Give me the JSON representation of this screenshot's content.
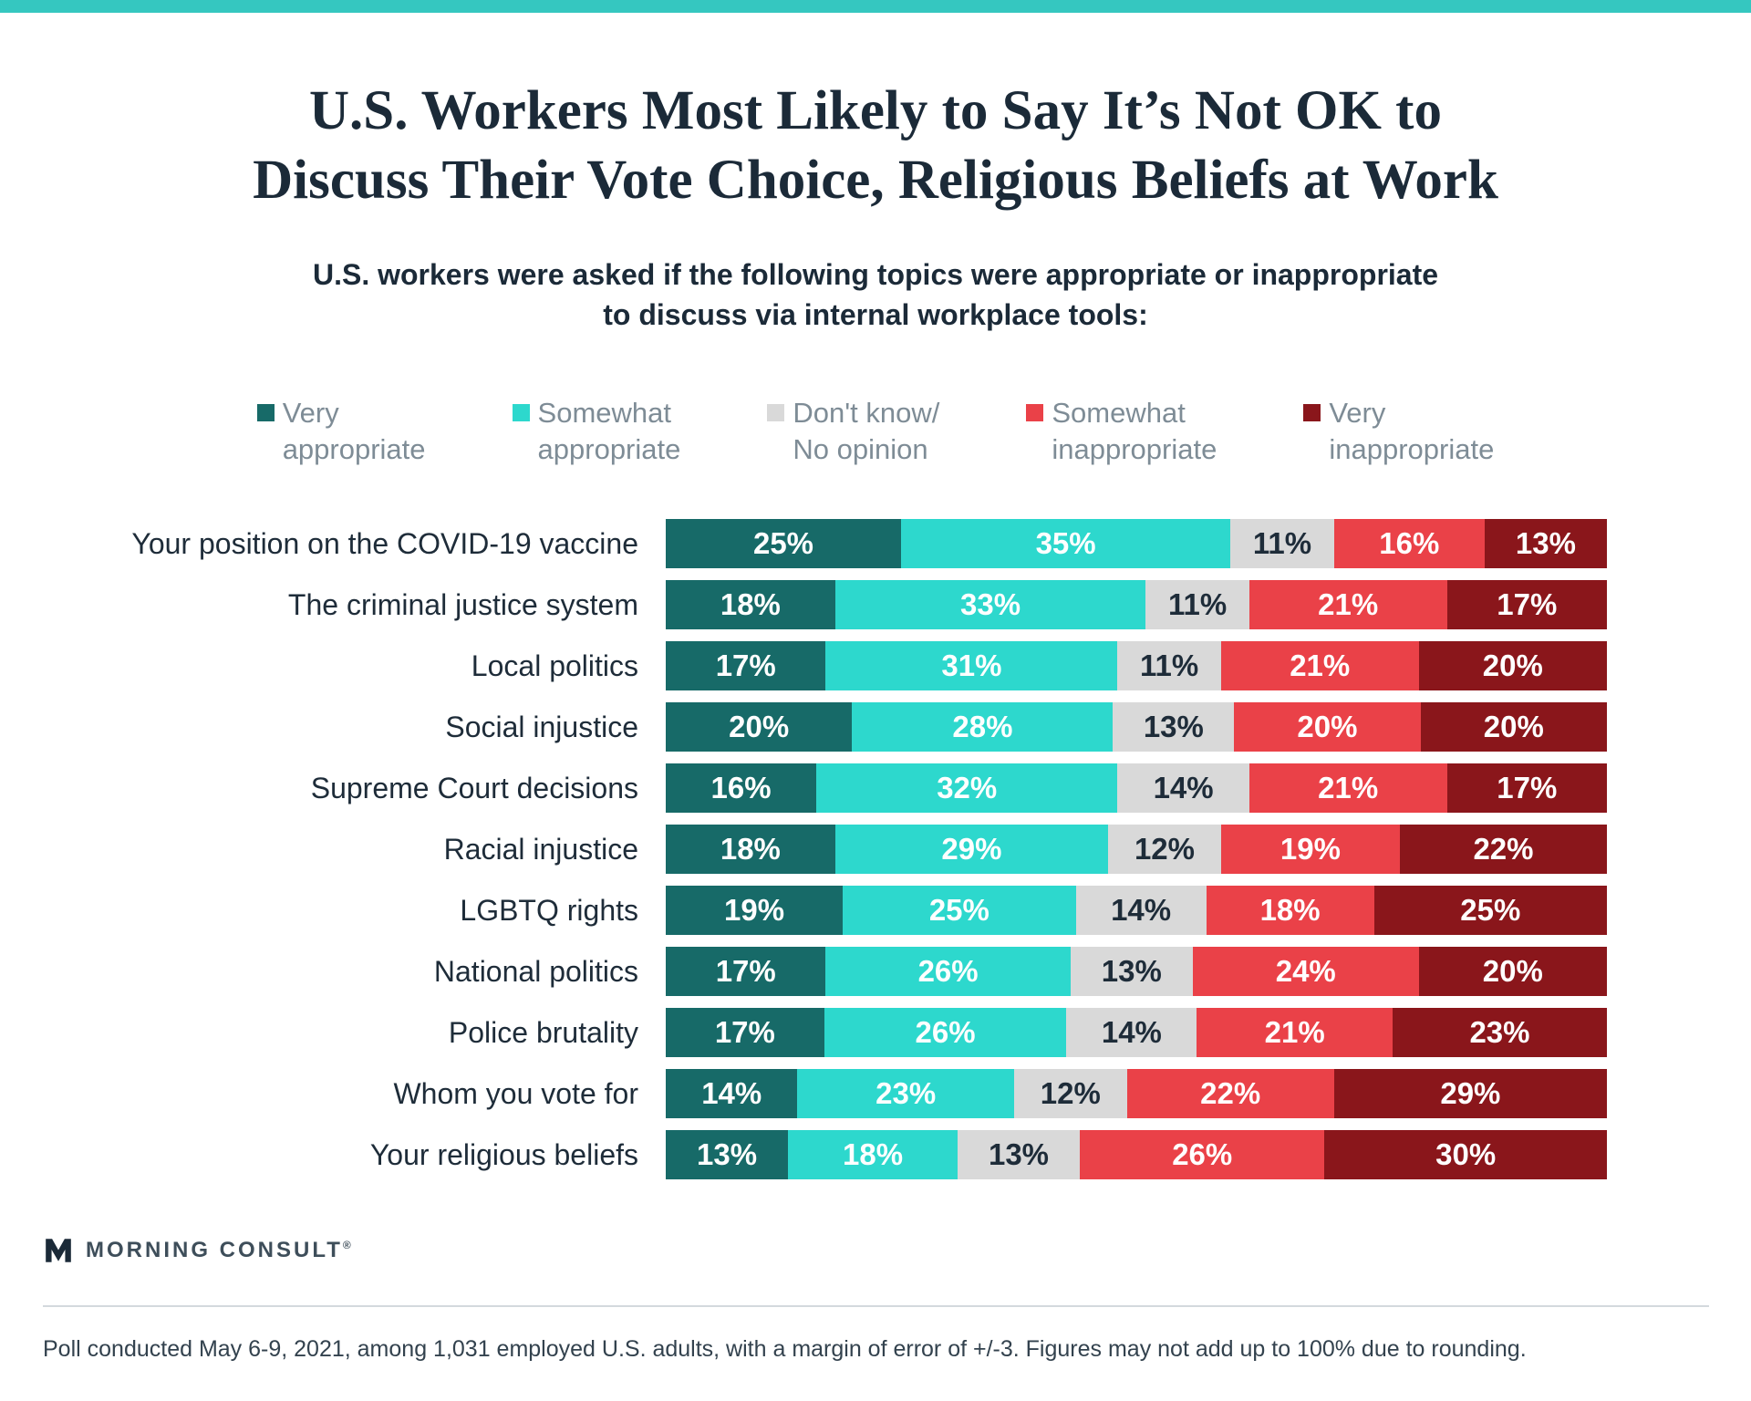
{
  "accent_color": "#35c7c0",
  "header": {
    "title_line1": "U.S. Workers Most Likely to Say It’s Not OK to",
    "title_line2": "Discuss Their Vote Choice, Religious Beliefs at Work",
    "subtitle_line1": "U.S. workers were asked if the following topics were appropriate or inappropriate",
    "subtitle_line2": "to discuss via internal workplace tools:"
  },
  "chart_data": {
    "type": "bar",
    "orientation": "horizontal",
    "stacked": true,
    "unit": "%",
    "title": "U.S. Workers Most Likely to Say It’s Not OK to Discuss Their Vote Choice, Religious Beliefs at Work",
    "subtitle": "U.S. workers were asked if the following topics were appropriate or inappropriate to discuss via internal workplace tools:",
    "legend_position": "top",
    "xlim": [
      0,
      100
    ],
    "categories": [
      "Your position on the COVID-19 vaccine",
      "The criminal justice system",
      "Local politics",
      "Social injustice",
      "Supreme Court decisions",
      "Racial injustice",
      "LGBTQ rights",
      "National politics",
      "Police brutality",
      "Whom you vote for",
      "Your religious beliefs"
    ],
    "series": [
      {
        "name": "Very appropriate",
        "label_lines": [
          "Very",
          "appropriate"
        ],
        "color": "#176a68",
        "text_color": "#ffffff",
        "values": [
          25,
          18,
          17,
          20,
          16,
          18,
          19,
          17,
          17,
          14,
          13
        ]
      },
      {
        "name": "Somewhat appropriate",
        "label_lines": [
          "Somewhat",
          "appropriate"
        ],
        "color": "#2dd8cd",
        "text_color": "#ffffff",
        "values": [
          35,
          33,
          31,
          28,
          32,
          29,
          25,
          26,
          26,
          23,
          18
        ]
      },
      {
        "name": "Don't know/ No opinion",
        "label_lines": [
          "Don't know/",
          "No opinion"
        ],
        "color": "#d9d9d9",
        "text_color": "#1e2c39",
        "values": [
          11,
          11,
          11,
          13,
          14,
          12,
          14,
          13,
          14,
          12,
          13
        ]
      },
      {
        "name": "Somewhat inappropriate",
        "label_lines": [
          "Somewhat",
          "inappropriate"
        ],
        "color": "#ea4148",
        "text_color": "#ffffff",
        "values": [
          16,
          21,
          21,
          20,
          21,
          19,
          18,
          24,
          21,
          22,
          26
        ]
      },
      {
        "name": "Very inappropriate",
        "label_lines": [
          "Very",
          "inappropriate"
        ],
        "color": "#8a161b",
        "text_color": "#ffffff",
        "values": [
          13,
          17,
          20,
          20,
          17,
          22,
          25,
          20,
          23,
          29,
          30
        ]
      }
    ]
  },
  "footer": {
    "brand": "MORNING CONSULT",
    "brand_mark": "®",
    "footnote": "Poll conducted May 6-9, 2021, among 1,031 employed U.S. adults, with a margin of error of +/-3. Figures may not add up to 100% due to rounding."
  }
}
